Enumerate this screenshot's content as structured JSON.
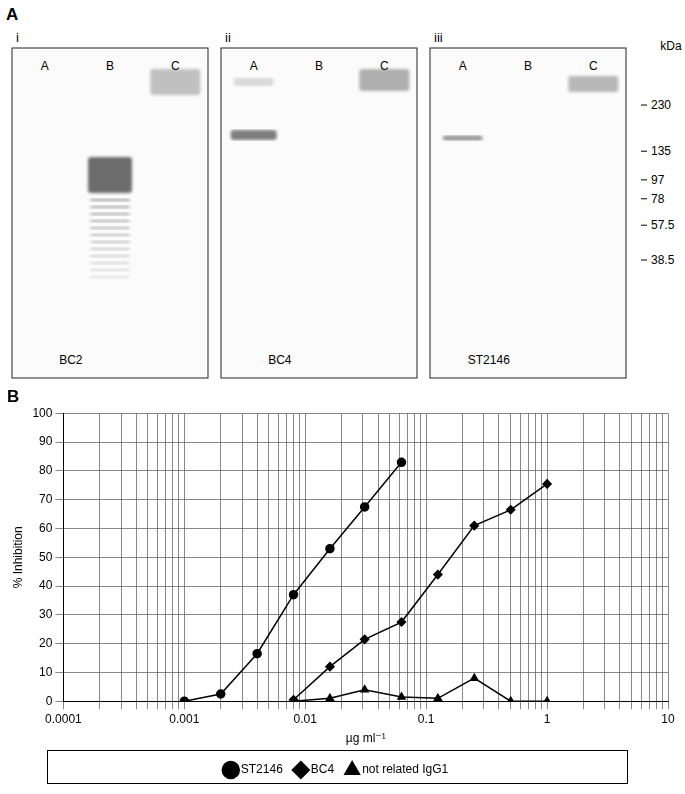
{
  "panel_a": {
    "label": "A",
    "marker_unit": "kDa",
    "markers": [
      230,
      135,
      97,
      78,
      57.5,
      38.5
    ],
    "blots": [
      {
        "numeral": "i",
        "name": "BC2",
        "lanes": [
          "A",
          "B",
          "C"
        ]
      },
      {
        "numeral": "ii",
        "name": "BC4",
        "lanes": [
          "A",
          "B",
          "C"
        ]
      },
      {
        "numeral": "iii",
        "name": "ST2146",
        "lanes": [
          "A",
          "B",
          "C"
        ]
      }
    ]
  },
  "chart_data": {
    "type": "line",
    "title": "B",
    "x_label": "µg ml⁻¹",
    "y_label": "% Inhibition",
    "log": "x",
    "grid": true,
    "legend": "bottom",
    "xlim": [
      0.0001,
      10
    ],
    "xticks": [
      0.0001,
      0.001,
      0.01,
      0.1,
      1,
      10
    ],
    "ylim": [
      0,
      100
    ],
    "yticks": [
      0,
      10,
      20,
      30,
      40,
      50,
      60,
      70,
      80,
      90,
      100
    ],
    "series": [
      {
        "name": "ST2146",
        "color": "#000000",
        "marker": "circle",
        "x": [
          0.001,
          0.002,
          0.004,
          0.008,
          0.016,
          0.031,
          0.0625
        ],
        "values": [
          0,
          2.5,
          16.5,
          37,
          53,
          67.5,
          83
        ]
      },
      {
        "name": "BC4",
        "color": "#000000",
        "marker": "diamond",
        "x": [
          0.008,
          0.016,
          0.031,
          0.0625,
          0.125,
          0.25,
          0.5,
          1
        ],
        "values": [
          0.5,
          12,
          21.5,
          27.5,
          44,
          61,
          66.5,
          75.5
        ]
      },
      {
        "name": "not related IgG1",
        "color": "#000000",
        "marker": "triangle",
        "x": [
          0.008,
          0.016,
          0.031,
          0.0625,
          0.125,
          0.25,
          0.5,
          1
        ],
        "values": [
          0,
          1,
          4,
          1.5,
          1,
          8,
          0,
          0
        ]
      }
    ]
  }
}
